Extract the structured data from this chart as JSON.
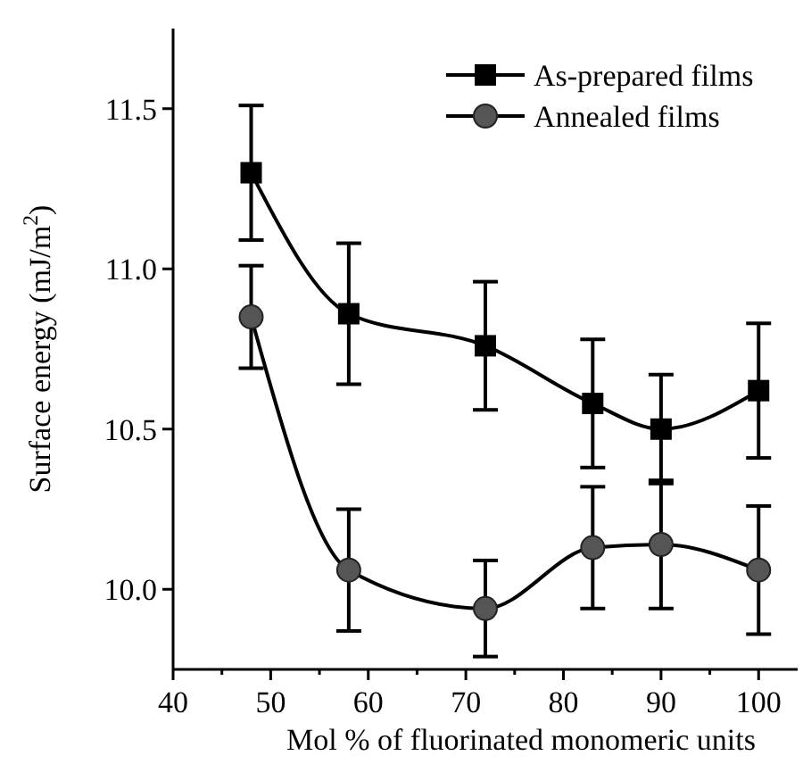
{
  "chart_data": {
    "type": "line",
    "xlabel": "Mol % of fluorinated monomeric units",
    "ylabel": "Surface energy (mJ/m$^{2}$)",
    "xlim": [
      40,
      104
    ],
    "xticks": [
      40,
      {
        "value": 45,
        "label": null
      },
      50,
      {
        "value": 55,
        "label": null
      },
      60,
      {
        "value": 65,
        "label": null
      },
      70,
      {
        "value": 75,
        "label": null
      },
      80,
      {
        "value": 85,
        "label": null
      },
      90,
      {
        "value": 95,
        "label": null
      },
      100
    ],
    "ylim": [
      9.75,
      11.75
    ],
    "yticks": [
      {
        "value": 10,
        "label": "10.0"
      },
      10.5,
      {
        "value": 11,
        "label": "11.0"
      },
      11.5
    ],
    "grid": false,
    "legend": "top right",
    "line_style": "solid",
    "series": [
      {
        "name": "As-prepared films",
        "color": "#000000",
        "marker": "square",
        "x": [
          48,
          58,
          72,
          83,
          90,
          100
        ],
        "values": [
          11.3,
          10.86,
          10.76,
          10.58,
          10.5,
          10.62
        ],
        "errors": [
          0.21,
          0.22,
          0.2,
          0.2,
          0.17,
          0.21
        ]
      },
      {
        "name": "Annealed films",
        "color": "#555555",
        "marker": "circle",
        "x": [
          48,
          58,
          72,
          83,
          90,
          100
        ],
        "values": [
          10.85,
          10.06,
          9.94,
          10.13,
          10.14,
          10.06
        ],
        "errors": [
          0.16,
          0.19,
          0.15,
          0.19,
          0.2,
          0.2
        ]
      }
    ]
  }
}
